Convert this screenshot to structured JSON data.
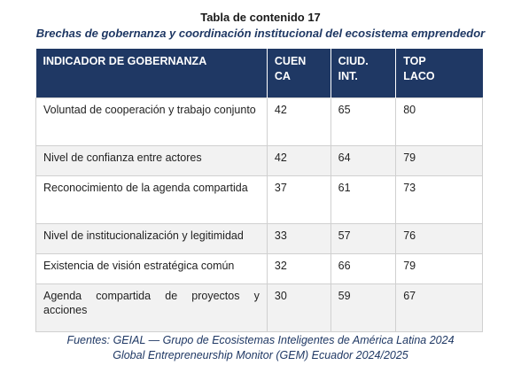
{
  "header": {
    "title": "Tabla de contenido 17",
    "subtitle": "Brechas de gobernanza y coordinación institucional del ecosistema emprendedor"
  },
  "table": {
    "columns": [
      "INDICADOR DE GOBERNANZA",
      "CUENCA",
      "CIUD. INT.",
      "TOP LACO"
    ],
    "rows": [
      [
        "Voluntad de cooperación y trabajo conjunto",
        42,
        65,
        80
      ],
      [
        "Nivel de confianza entre actores",
        42,
        64,
        79
      ],
      [
        "Reconocimiento de la agenda compartida",
        37,
        61,
        73
      ],
      [
        "Nivel de institucionalización y legitimidad",
        33,
        57,
        76
      ],
      [
        "Existencia de visión estratégica común",
        32,
        66,
        79
      ],
      [
        "Agenda compartida de proyectos y acciones",
        30,
        59,
        67
      ]
    ]
  },
  "footer": [
    "Fuentes: GEIAL — Grupo de Ecosistemas Inteligentes de América Latina 2024",
    "Global Entrepreneurship Monitor (GEM) Ecuador 2024/2025"
  ]
}
